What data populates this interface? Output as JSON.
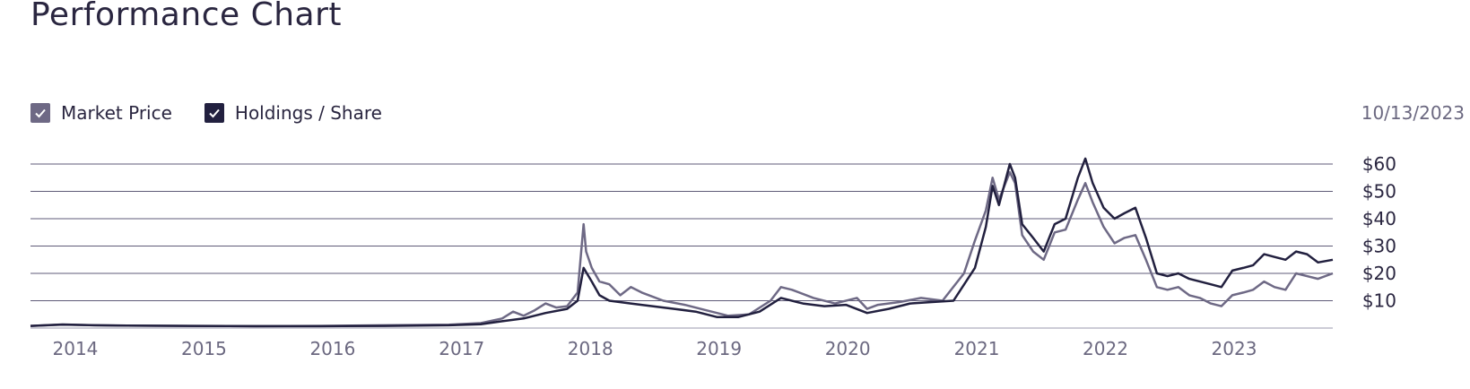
{
  "title": "Performance Chart",
  "date": "10/13/2023",
  "legend": [
    {
      "label": "Market Price",
      "color": "#6e6985"
    },
    {
      "label": "Holdings / Share",
      "color": "#22203f"
    }
  ],
  "chart_data": {
    "type": "line",
    "grid": true,
    "legend_placement": "top-left",
    "ylim": [
      0,
      60
    ],
    "y_ticks": [
      {
        "value": 60,
        "label": "$60"
      },
      {
        "value": 50,
        "label": "$50"
      },
      {
        "value": 40,
        "label": "$40"
      },
      {
        "value": 30,
        "label": "$30"
      },
      {
        "value": 20,
        "label": "$20"
      },
      {
        "value": 10,
        "label": "$10"
      }
    ],
    "xlim": [
      "2013-09-01",
      "2023-10-13"
    ],
    "x_ticks": [
      {
        "value": "2014-01-01",
        "label": "2014"
      },
      {
        "value": "2015-01-01",
        "label": "2015"
      },
      {
        "value": "2016-01-01",
        "label": "2016"
      },
      {
        "value": "2017-01-01",
        "label": "2017"
      },
      {
        "value": "2018-01-01",
        "label": "2018"
      },
      {
        "value": "2019-01-01",
        "label": "2019"
      },
      {
        "value": "2020-01-01",
        "label": "2020"
      },
      {
        "value": "2021-01-01",
        "label": "2021"
      },
      {
        "value": "2022-01-01",
        "label": "2022"
      },
      {
        "value": "2023-01-01",
        "label": "2023"
      }
    ],
    "series": [
      {
        "name": "Market Price",
        "color": "#6e6985",
        "points": [
          [
            "2013-09-01",
            0.8
          ],
          [
            "2013-12-01",
            1.2
          ],
          [
            "2014-03-01",
            1.0
          ],
          [
            "2014-06-01",
            0.9
          ],
          [
            "2014-12-01",
            0.8
          ],
          [
            "2015-06-01",
            0.7
          ],
          [
            "2015-12-01",
            0.8
          ],
          [
            "2016-06-01",
            1.0
          ],
          [
            "2016-12-01",
            1.2
          ],
          [
            "2017-03-01",
            1.8
          ],
          [
            "2017-05-01",
            3.5
          ],
          [
            "2017-06-01",
            6.0
          ],
          [
            "2017-07-01",
            4.5
          ],
          [
            "2017-08-01",
            6.5
          ],
          [
            "2017-09-01",
            9.0
          ],
          [
            "2017-10-01",
            7.5
          ],
          [
            "2017-11-01",
            8.0
          ],
          [
            "2017-12-01",
            13.0
          ],
          [
            "2017-12-18",
            38.0
          ],
          [
            "2017-12-25",
            28.0
          ],
          [
            "2018-01-10",
            22.0
          ],
          [
            "2018-02-01",
            17.0
          ],
          [
            "2018-03-01",
            16.0
          ],
          [
            "2018-04-01",
            12.0
          ],
          [
            "2018-05-01",
            15.0
          ],
          [
            "2018-06-01",
            13.0
          ],
          [
            "2018-08-01",
            10.0
          ],
          [
            "2018-10-01",
            8.5
          ],
          [
            "2018-12-01",
            6.5
          ],
          [
            "2019-02-01",
            4.5
          ],
          [
            "2019-04-01",
            5.0
          ],
          [
            "2019-06-01",
            10.0
          ],
          [
            "2019-07-01",
            15.0
          ],
          [
            "2019-08-01",
            14.0
          ],
          [
            "2019-10-01",
            11.0
          ],
          [
            "2019-12-01",
            9.0
          ],
          [
            "2020-02-01",
            11.0
          ],
          [
            "2020-03-01",
            7.0
          ],
          [
            "2020-04-01",
            8.5
          ],
          [
            "2020-06-01",
            9.5
          ],
          [
            "2020-08-01",
            11.0
          ],
          [
            "2020-10-01",
            10.0
          ],
          [
            "2020-12-01",
            20.0
          ],
          [
            "2021-01-01",
            32.0
          ],
          [
            "2021-02-01",
            43.0
          ],
          [
            "2021-02-20",
            55.0
          ],
          [
            "2021-03-10",
            47.0
          ],
          [
            "2021-04-10",
            57.0
          ],
          [
            "2021-04-25",
            53.0
          ],
          [
            "2021-05-15",
            34.0
          ],
          [
            "2021-06-15",
            28.0
          ],
          [
            "2021-07-15",
            25.0
          ],
          [
            "2021-08-15",
            35.0
          ],
          [
            "2021-09-15",
            36.0
          ],
          [
            "2021-10-20",
            47.0
          ],
          [
            "2021-11-10",
            53.0
          ],
          [
            "2021-12-01",
            46.0
          ],
          [
            "2022-01-01",
            37.0
          ],
          [
            "2022-02-01",
            31.0
          ],
          [
            "2022-03-01",
            33.0
          ],
          [
            "2022-04-01",
            34.0
          ],
          [
            "2022-05-01",
            25.0
          ],
          [
            "2022-06-01",
            15.0
          ],
          [
            "2022-07-01",
            14.0
          ],
          [
            "2022-08-01",
            15.0
          ],
          [
            "2022-09-01",
            12.0
          ],
          [
            "2022-10-01",
            11.0
          ],
          [
            "2022-11-01",
            9.0
          ],
          [
            "2022-12-01",
            8.0
          ],
          [
            "2023-01-01",
            12.0
          ],
          [
            "2023-02-01",
            13.0
          ],
          [
            "2023-03-01",
            14.0
          ],
          [
            "2023-04-01",
            17.0
          ],
          [
            "2023-05-01",
            15.0
          ],
          [
            "2023-06-01",
            14.0
          ],
          [
            "2023-07-01",
            20.0
          ],
          [
            "2023-08-01",
            19.0
          ],
          [
            "2023-09-01",
            18.0
          ],
          [
            "2023-10-13",
            20.0
          ]
        ]
      },
      {
        "name": "Holdings / Share",
        "color": "#22203f",
        "points": [
          [
            "2013-09-01",
            0.8
          ],
          [
            "2013-12-01",
            1.3
          ],
          [
            "2014-03-01",
            1.0
          ],
          [
            "2014-06-01",
            0.9
          ],
          [
            "2014-12-01",
            0.8
          ],
          [
            "2015-06-01",
            0.7
          ],
          [
            "2015-12-01",
            0.7
          ],
          [
            "2016-06-01",
            0.8
          ],
          [
            "2016-12-01",
            1.0
          ],
          [
            "2017-03-01",
            1.4
          ],
          [
            "2017-05-01",
            2.5
          ],
          [
            "2017-07-01",
            3.5
          ],
          [
            "2017-09-01",
            5.5
          ],
          [
            "2017-11-01",
            7.0
          ],
          [
            "2017-12-01",
            10.0
          ],
          [
            "2017-12-18",
            22.0
          ],
          [
            "2018-01-10",
            17.0
          ],
          [
            "2018-02-01",
            12.0
          ],
          [
            "2018-03-01",
            10.0
          ],
          [
            "2018-05-01",
            9.0
          ],
          [
            "2018-07-01",
            8.0
          ],
          [
            "2018-09-01",
            7.0
          ],
          [
            "2018-11-01",
            6.0
          ],
          [
            "2019-01-01",
            4.0
          ],
          [
            "2019-03-01",
            4.0
          ],
          [
            "2019-05-01",
            6.0
          ],
          [
            "2019-07-01",
            11.0
          ],
          [
            "2019-09-01",
            9.0
          ],
          [
            "2019-11-01",
            8.0
          ],
          [
            "2020-01-01",
            8.5
          ],
          [
            "2020-03-01",
            5.5
          ],
          [
            "2020-05-01",
            7.0
          ],
          [
            "2020-07-01",
            9.0
          ],
          [
            "2020-09-01",
            9.5
          ],
          [
            "2020-11-01",
            10.0
          ],
          [
            "2021-01-01",
            22.0
          ],
          [
            "2021-02-01",
            37.0
          ],
          [
            "2021-02-20",
            52.0
          ],
          [
            "2021-03-10",
            45.0
          ],
          [
            "2021-04-10",
            60.0
          ],
          [
            "2021-04-25",
            55.0
          ],
          [
            "2021-05-15",
            38.0
          ],
          [
            "2021-06-15",
            33.0
          ],
          [
            "2021-07-15",
            28.0
          ],
          [
            "2021-08-15",
            38.0
          ],
          [
            "2021-09-15",
            40.0
          ],
          [
            "2021-10-20",
            55.0
          ],
          [
            "2021-11-10",
            62.0
          ],
          [
            "2021-12-01",
            53.0
          ],
          [
            "2022-01-01",
            44.0
          ],
          [
            "2022-02-01",
            40.0
          ],
          [
            "2022-03-01",
            42.0
          ],
          [
            "2022-04-01",
            44.0
          ],
          [
            "2022-05-01",
            33.0
          ],
          [
            "2022-06-01",
            20.0
          ],
          [
            "2022-07-01",
            19.0
          ],
          [
            "2022-08-01",
            20.0
          ],
          [
            "2022-09-01",
            18.0
          ],
          [
            "2022-10-01",
            17.0
          ],
          [
            "2022-11-01",
            16.0
          ],
          [
            "2022-12-01",
            15.0
          ],
          [
            "2023-01-01",
            21.0
          ],
          [
            "2023-02-01",
            22.0
          ],
          [
            "2023-03-01",
            23.0
          ],
          [
            "2023-04-01",
            27.0
          ],
          [
            "2023-05-01",
            26.0
          ],
          [
            "2023-06-01",
            25.0
          ],
          [
            "2023-07-01",
            28.0
          ],
          [
            "2023-08-01",
            27.0
          ],
          [
            "2023-09-01",
            24.0
          ],
          [
            "2023-10-13",
            25.0
          ]
        ]
      }
    ]
  }
}
